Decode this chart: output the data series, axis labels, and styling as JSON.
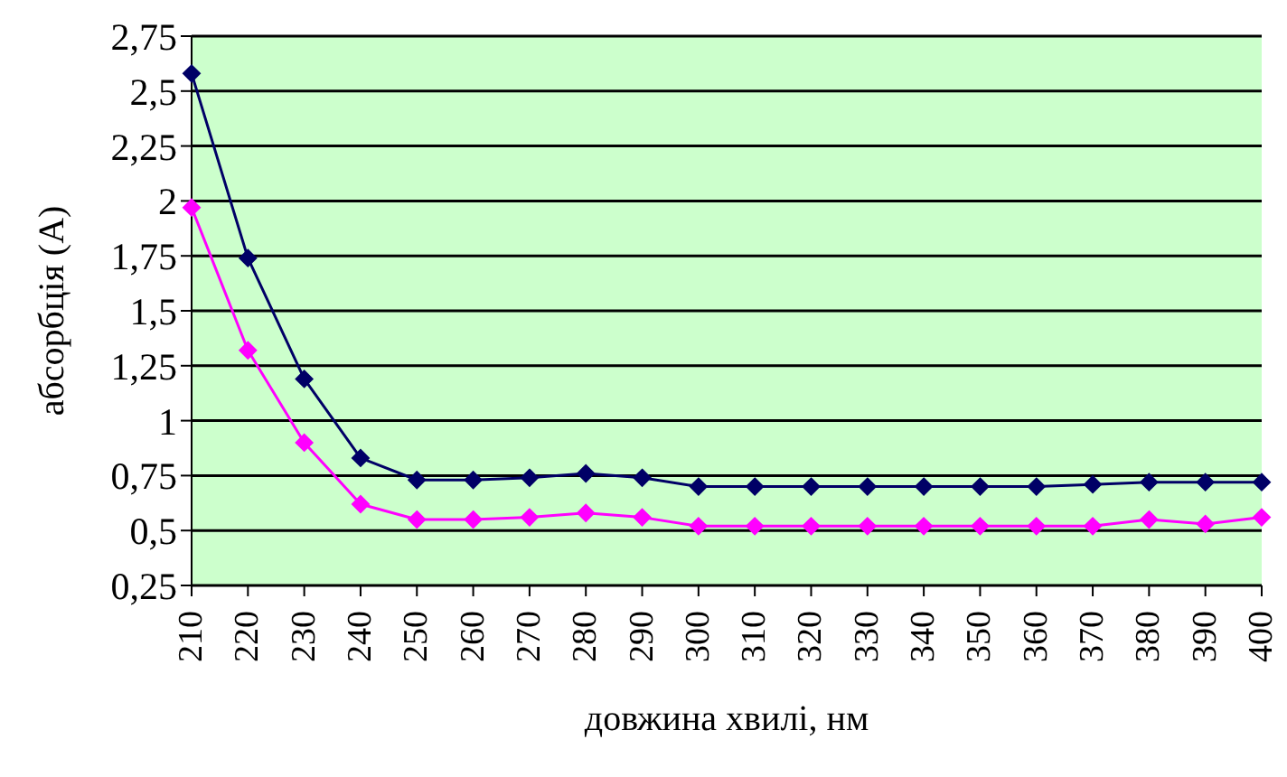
{
  "chart_data": {
    "type": "line",
    "xlabel": "довжина хвилі, нм",
    "ylabel": "абсорбція (A)",
    "categories": [
      "210",
      "220",
      "230",
      "240",
      "250",
      "260",
      "270",
      "280",
      "290",
      "300",
      "310",
      "320",
      "330",
      "340",
      "350",
      "360",
      "370",
      "380",
      "390",
      "400"
    ],
    "series": [
      {
        "color": "#000066",
        "values": [
          2.58,
          1.74,
          1.19,
          0.83,
          0.73,
          0.73,
          0.74,
          0.76,
          0.74,
          0.7,
          0.7,
          0.7,
          0.7,
          0.7,
          0.7,
          0.7,
          0.71,
          0.72,
          0.72,
          0.72
        ]
      },
      {
        "color": "#ff00ff",
        "values": [
          1.97,
          1.32,
          0.9,
          0.62,
          0.55,
          0.55,
          0.56,
          0.58,
          0.56,
          0.52,
          0.52,
          0.52,
          0.52,
          0.52,
          0.52,
          0.52,
          0.52,
          0.55,
          0.53,
          0.56
        ]
      }
    ],
    "ylim": [
      0.25,
      2.75
    ],
    "yticks": [
      {
        "value": 0.25,
        "label": "0,25"
      },
      {
        "value": 0.5,
        "label": "0,5"
      },
      {
        "value": 0.75,
        "label": "0,75"
      },
      1,
      {
        "value": 1.25,
        "label": "1,25"
      },
      {
        "value": 1.5,
        "label": "1,5"
      },
      {
        "value": 1.75,
        "label": "1,75"
      },
      2,
      {
        "value": 2.25,
        "label": "2,25"
      },
      {
        "value": 2.5,
        "label": "2,5"
      },
      {
        "value": 2.75,
        "label": "2,75"
      }
    ],
    "grid": "y",
    "legend": false,
    "marker": "diamond",
    "line_style": "solid"
  }
}
